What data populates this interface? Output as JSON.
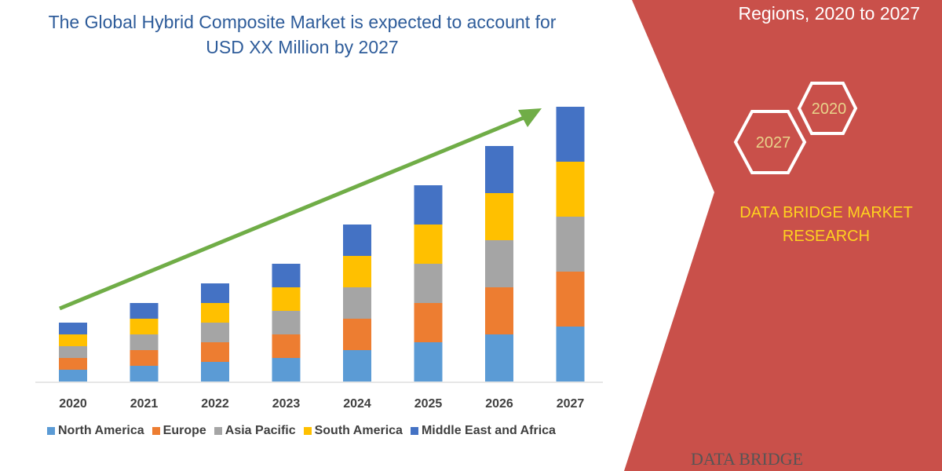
{
  "title": "The Global Hybrid Composite Market is expected to account for USD XX Million by 2027",
  "side_title": "Regions, 2020 to 2027",
  "hex_labels": [
    "2020",
    "2027"
  ],
  "brand": "DATA BRIDGE MARKET RESEARCH",
  "logo_text": "DATA BRIDGE",
  "colors": {
    "panel": "#c9504a",
    "arrow": "#70ad47",
    "hex": "#ffffff",
    "hex_text": "#e8d38a"
  },
  "chart_data": {
    "type": "bar",
    "stacked": true,
    "categories": [
      "2020",
      "2021",
      "2022",
      "2023",
      "2024",
      "2025",
      "2026",
      "2027"
    ],
    "series": [
      {
        "name": "North America",
        "color": "#5b9bd5",
        "values": [
          15,
          20,
          25,
          30,
          40,
          50,
          60,
          70
        ]
      },
      {
        "name": "Europe",
        "color": "#ed7d31",
        "values": [
          15,
          20,
          25,
          30,
          40,
          50,
          60,
          70
        ]
      },
      {
        "name": "Asia Pacific",
        "color": "#a5a5a5",
        "values": [
          15,
          20,
          25,
          30,
          40,
          50,
          60,
          70
        ]
      },
      {
        "name": "South America",
        "color": "#ffc000",
        "values": [
          15,
          20,
          25,
          30,
          40,
          50,
          60,
          70
        ]
      },
      {
        "name": "Middle East and Africa",
        "color": "#4472c4",
        "values": [
          15,
          20,
          25,
          30,
          40,
          50,
          60,
          70
        ]
      }
    ],
    "legend": "bottom",
    "grid": false,
    "y_axis_shown": false,
    "trend_arrow": true
  }
}
